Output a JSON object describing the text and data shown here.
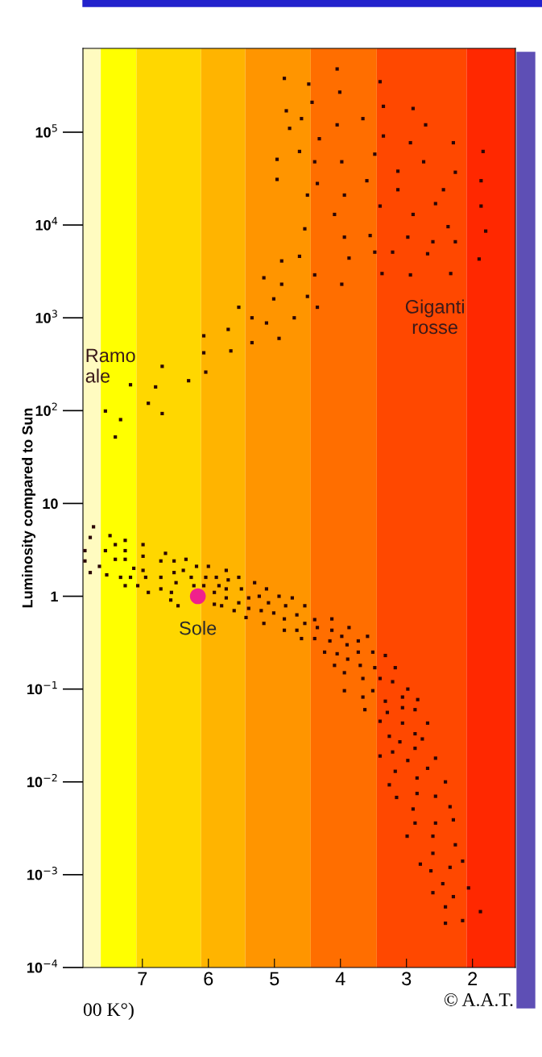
{
  "chart_data": {
    "type": "scatter",
    "ylabel": "Luminosity compared to Sun",
    "xlabel": "00 K°)",
    "log": "y",
    "xlim": [
      7.9,
      1.35
    ],
    "ylim": [
      0.0001,
      800000
    ],
    "xticks": [
      7,
      6,
      5,
      4,
      3,
      2
    ],
    "yticks": [
      {
        "value": 100000,
        "label": "10$^{5}$"
      },
      {
        "value": 10000,
        "label": "10$^{4}$"
      },
      {
        "value": 1000,
        "label": "10$^{3}$"
      },
      {
        "value": 100,
        "label": "10$^{2}$"
      },
      10,
      1,
      {
        "value": 0.1,
        "label": "10$^{−1}$"
      },
      {
        "value": 0.01,
        "label": "10$^{−2}$"
      },
      {
        "value": 0.001,
        "label": "10$^{−3}$"
      },
      {
        "value": 0.0001,
        "label": "10$^{−4}$"
      }
    ],
    "marker": "square",
    "bands": [
      {
        "axis": "x",
        "from": 7.9,
        "to": 7.63,
        "color": "#fffbc0"
      },
      {
        "axis": "x",
        "from": 7.63,
        "to": 7.09,
        "color": "#ffff00"
      },
      {
        "axis": "x",
        "from": 7.09,
        "to": 6.11,
        "color": "#ffd700"
      },
      {
        "axis": "x",
        "from": 6.11,
        "to": 5.44,
        "color": "#ffb400"
      },
      {
        "axis": "x",
        "from": 5.44,
        "to": 4.45,
        "color": "#ff9500"
      },
      {
        "axis": "x",
        "from": 4.45,
        "to": 3.45,
        "color": "#ff6e00"
      },
      {
        "axis": "x",
        "from": 3.45,
        "to": 2.09,
        "color": "#ff4800"
      },
      {
        "axis": "x",
        "from": 2.09,
        "to": 1.35,
        "color": "#ff2800"
      }
    ],
    "series": [
      {
        "color": "#2a0505",
        "x": [
          4.05,
          4.85,
          4.48,
          3.4,
          4.01,
          4.43,
          3.35,
          2.9,
          4.82,
          4.59,
          3.66,
          2.71,
          4.05,
          4.77,
          4.32,
          3.35,
          2.94,
          2.29,
          1.84,
          4.62,
          3.48,
          4.96,
          4.39,
          3.98,
          2.74,
          3.13,
          2.26,
          4.96,
          4.35,
          3.6,
          1.87,
          3.13,
          2.44,
          4.5,
          3.94,
          3.4,
          2.56,
          1.87,
          4.09,
          2.9,
          4.54,
          2.37,
          1.8,
          3.94,
          3.55,
          2.98,
          2.6,
          2.26,
          3.48,
          3.21,
          2.68,
          4.62,
          3.87,
          4.89,
          1.9,
          5.16,
          4.89,
          4.39,
          3.98,
          3.37,
          2.94,
          2.33,
          5.54,
          5.01,
          4.5,
          4.35,
          5.34,
          4.7,
          5.12,
          5.7,
          6.07,
          4.93,
          5.34,
          6.07,
          5.66,
          6.7,
          6.04,
          6.3,
          7.18,
          6.8,
          6.91,
          7.56,
          6.7,
          7.33,
          7.41,
          7.74,
          7.79,
          7.49,
          7.87,
          7.56,
          7.41,
          7.26,
          7.26,
          6.99,
          7.87,
          7.41,
          7.26,
          6.99,
          7.65,
          7.79,
          7.54,
          7.13,
          6.99,
          7.33,
          7.18,
          6.95,
          7.26,
          7.07,
          6.91,
          6.65,
          6.72,
          6.52,
          6.34,
          6.72,
          6.52,
          6.38,
          6.18,
          6.0,
          5.73,
          6.49,
          6.72,
          6.56,
          6.57,
          6.46,
          6.26,
          6.04,
          5.88,
          6.22,
          6.07,
          5.84,
          5.7,
          5.54,
          5.73,
          5.5,
          5.3,
          5.12,
          5.91,
          5.73,
          5.39,
          5.23,
          4.93,
          4.73,
          5.91,
          5.8,
          5.54,
          5.39,
          5.09,
          4.83,
          4.54,
          5.61,
          5.43,
          5.2,
          5.01,
          4.66,
          5.16,
          4.85,
          4.54,
          4.39,
          4.13,
          4.85,
          4.66,
          4.35,
          4.13,
          3.87,
          4.59,
          4.39,
          4.16,
          3.98,
          3.73,
          3.59,
          3.9,
          4.24,
          4.05,
          3.73,
          3.51,
          3.32,
          3.89,
          4.09,
          3.7,
          3.48,
          3.17,
          3.94,
          3.66,
          3.4,
          3.21,
          3.94,
          3.51,
          2.98,
          3.66,
          3.32,
          3.06,
          2.83,
          3.63,
          3.29,
          3.06,
          2.87,
          3.4,
          3.06,
          2.68,
          3.26,
          2.87,
          3.1,
          2.76,
          2.87,
          3.4,
          3.21,
          2.98,
          2.56,
          2.68,
          3.17,
          2.84,
          2.41,
          3.26,
          3.15,
          2.84,
          2.56,
          2.9,
          2.34,
          2.29,
          2.87,
          2.56,
          2.99,
          2.6,
          2.26,
          2.6,
          2.15,
          2.79,
          2.63,
          2.34,
          2.45,
          2.06,
          2.6,
          2.29,
          2.41,
          1.88,
          2.41,
          2.15
        ],
        "values": [
          480000,
          380000,
          330000,
          350000,
          270000,
          210000,
          190000,
          180000,
          170000,
          140000,
          140000,
          120000,
          120000,
          110000,
          85000,
          91000,
          77000,
          77000,
          62000,
          62000,
          58000,
          51000,
          48000,
          48000,
          48000,
          38000,
          37000,
          31000,
          28000,
          30000,
          30000,
          24000,
          24000,
          21000,
          21000,
          16000,
          17000,
          16000,
          13000,
          13000,
          9100,
          9600,
          8600,
          7400,
          7700,
          7400,
          6600,
          6600,
          5100,
          5100,
          4900,
          4600,
          4400,
          4100,
          4300,
          2700,
          2300,
          2900,
          2300,
          3000,
          2900,
          3000,
          1300,
          1600,
          1700,
          1300,
          1000,
          1000,
          880,
          750,
          640,
          600,
          540,
          420,
          440,
          300,
          260,
          210,
          190,
          180,
          120,
          99,
          93,
          80,
          52,
          5.6,
          4.3,
          4.5,
          3.1,
          3.1,
          3.6,
          4.0,
          3.1,
          3.6,
          2.4,
          2.5,
          2.5,
          2.7,
          2.1,
          1.8,
          1.7,
          2.0,
          1.9,
          1.6,
          1.6,
          1.6,
          1.3,
          1.3,
          1.1,
          2.9,
          2.4,
          2.4,
          2.5,
          1.6,
          1.8,
          1.9,
          2.1,
          2.1,
          1.9,
          1.4,
          1.2,
          1.1,
          0.91,
          0.79,
          1.6,
          1.6,
          1.6,
          1.3,
          1.3,
          1.3,
          1.5,
          1.6,
          1.2,
          1.2,
          1.4,
          1.2,
          1.1,
          0.96,
          0.96,
          1.0,
          1.0,
          0.96,
          0.82,
          0.79,
          0.85,
          0.74,
          0.85,
          0.79,
          0.79,
          0.7,
          0.59,
          0.7,
          0.66,
          0.63,
          0.51,
          0.57,
          0.51,
          0.56,
          0.57,
          0.43,
          0.43,
          0.46,
          0.43,
          0.46,
          0.35,
          0.35,
          0.33,
          0.37,
          0.33,
          0.37,
          0.3,
          0.25,
          0.24,
          0.25,
          0.25,
          0.23,
          0.21,
          0.18,
          0.18,
          0.17,
          0.17,
          0.15,
          0.13,
          0.13,
          0.12,
          0.096,
          0.096,
          0.1,
          0.082,
          0.074,
          0.082,
          0.077,
          0.06,
          0.056,
          0.063,
          0.06,
          0.045,
          0.043,
          0.043,
          0.031,
          0.033,
          0.027,
          0.029,
          0.023,
          0.019,
          0.021,
          0.017,
          0.018,
          0.014,
          0.013,
          0.011,
          0.01,
          0.0093,
          0.0068,
          0.0075,
          0.007,
          0.0051,
          0.0054,
          0.0039,
          0.0036,
          0.0036,
          0.0026,
          0.0026,
          0.0021,
          0.0017,
          0.0014,
          0.0013,
          0.0011,
          0.0012,
          0.0008,
          0.00072,
          0.00064,
          0.00058,
          0.00045,
          0.0004,
          0.0003,
          0.00032
        ]
      },
      {
        "color": "#f0208c",
        "marker": "circle",
        "x": [
          6.16
        ],
        "values": [
          1.0
        ]
      }
    ],
    "annotations": [
      {
        "text": "Sole",
        "x": 6.16,
        "y": 1.0
      },
      "Giganti\nrosse",
      "Ramo\nale",
      "© A.A.T."
    ]
  }
}
